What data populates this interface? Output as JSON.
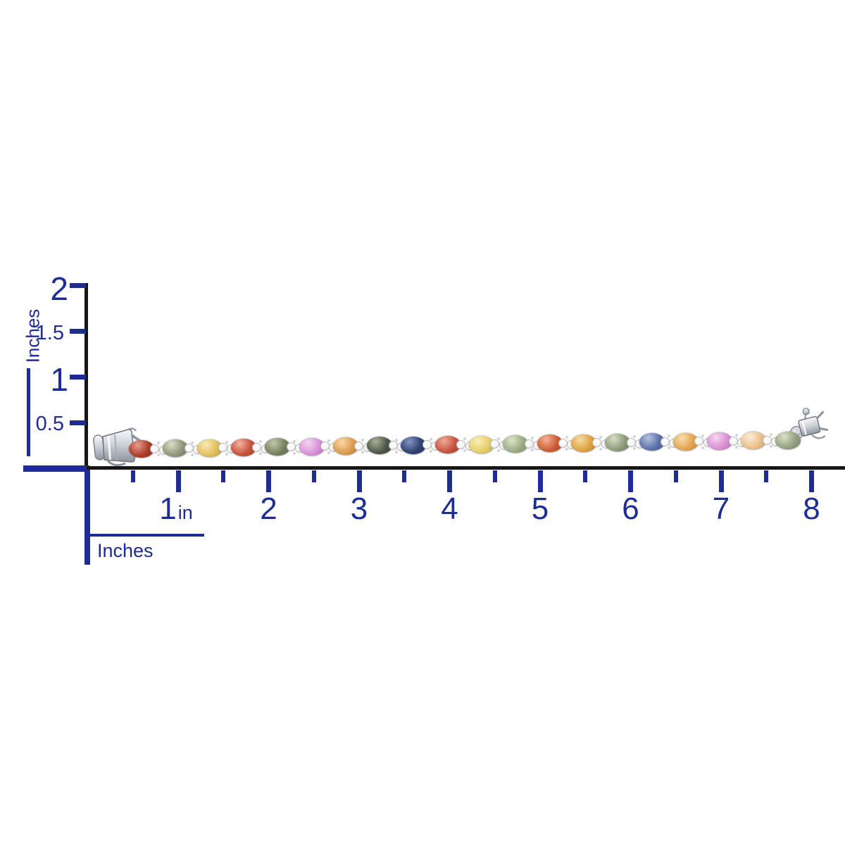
{
  "image_type": "jewelry product size-guide photo",
  "colors": {
    "background": "#ffffff",
    "ruler_navy": "#1e2d96",
    "ruler_black": "#161616",
    "metal_silver": "#c7ccd2",
    "accent_stone": "#f7f7f7"
  },
  "vertical_ruler": {
    "axis_label": "Inches",
    "ticks": [
      {
        "label": "2",
        "value": 2,
        "major": true
      },
      {
        "label": "1.5",
        "value": 1.5,
        "major": false
      },
      {
        "label": "1",
        "value": 1,
        "major": true
      },
      {
        "label": "0.5",
        "value": 0.5,
        "major": false
      }
    ]
  },
  "horizontal_ruler": {
    "axis_label": "Inches",
    "ticks": [
      {
        "label": "1",
        "value": 1,
        "suffix": "in"
      },
      {
        "label": "2",
        "value": 2
      },
      {
        "label": "3",
        "value": 3
      },
      {
        "label": "4",
        "value": 4
      },
      {
        "label": "5",
        "value": 5
      },
      {
        "label": "6",
        "value": 6
      },
      {
        "label": "7",
        "value": 7
      },
      {
        "label": "8",
        "value": 8
      }
    ],
    "half_tick_values": [
      0.5,
      1.5,
      2.5,
      3.5,
      4.5,
      5.5,
      6.5,
      7.5
    ]
  },
  "bracelet": {
    "description": "multi-color oval sapphire tennis bracelet in silver with box clasps, about 8 inches long",
    "stones": [
      {
        "name": "garnet-red",
        "color": "#a93927",
        "highlight": "#e89d8f"
      },
      {
        "name": "sage-green",
        "color": "#8d9677",
        "highlight": "#d8e0c6"
      },
      {
        "name": "golden-yellow",
        "color": "#e2bd5c",
        "highlight": "#f8ecb2"
      },
      {
        "name": "orange-red",
        "color": "#c5503a",
        "highlight": "#f2b2a0"
      },
      {
        "name": "dark-sage",
        "color": "#75805f",
        "highlight": "#c2cba8"
      },
      {
        "name": "orchid-pink",
        "color": "#d88fd8",
        "highlight": "#f4d8f2"
      },
      {
        "name": "orange",
        "color": "#dd9a4a",
        "highlight": "#f8d9a8"
      },
      {
        "name": "deep-forest",
        "color": "#4e5747",
        "highlight": "#a8b098"
      },
      {
        "name": "sapphire-blue",
        "color": "#2e4071",
        "highlight": "#8496c4"
      },
      {
        "name": "coral-red",
        "color": "#c4523f",
        "highlight": "#f0ab98"
      },
      {
        "name": "pale-yellow",
        "color": "#e6cd68",
        "highlight": "#faf0b8"
      },
      {
        "name": "light-sage",
        "color": "#9cab84",
        "highlight": "#dce6c8"
      },
      {
        "name": "burnt-orange",
        "color": "#cc5b35",
        "highlight": "#f4b392"
      },
      {
        "name": "citrine-amber",
        "color": "#dfa23f",
        "highlight": "#f7dda4"
      },
      {
        "name": "sage-green-2",
        "color": "#8e9a7a",
        "highlight": "#d6dfc2"
      },
      {
        "name": "steel-blue",
        "color": "#5a70a6",
        "highlight": "#b4c2e2"
      },
      {
        "name": "golden-orange",
        "color": "#e3a44f",
        "highlight": "#f8dfae"
      },
      {
        "name": "pink-sapphire",
        "color": "#dd8ed5",
        "highlight": "#f6d8f0"
      },
      {
        "name": "peach-champagne",
        "color": "#ecc08c",
        "highlight": "#fbeed8"
      },
      {
        "name": "sage-green-3",
        "color": "#95a181",
        "highlight": "#dae2c8"
      }
    ]
  }
}
